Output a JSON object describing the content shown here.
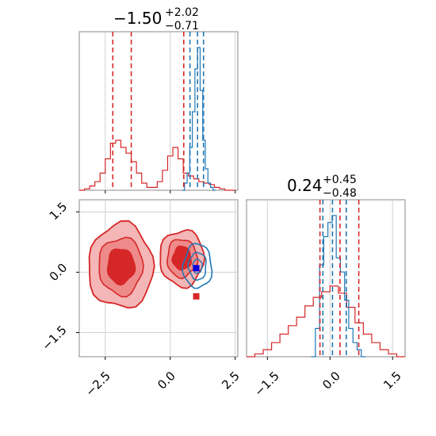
{
  "colors": {
    "red": "#d62728",
    "blue": "#1f77b4",
    "grid": "#d0d0d0",
    "axis": "#888888"
  },
  "chart_data": [
    {
      "type": "area",
      "panel": "top-left",
      "title": {
        "value": "−1.50",
        "plus": "+2.02",
        "minus": "−0.71"
      },
      "xlim": [
        -3.5,
        2.6
      ],
      "series": [
        {
          "color": "#d62728",
          "x": [
            -3.4,
            -3.2,
            -3.0,
            -2.8,
            -2.6,
            -2.4,
            -2.2,
            -2.0,
            -1.8,
            -1.6,
            -1.4,
            -1.2,
            -1.0,
            -0.8,
            -0.6,
            -0.4,
            -0.2,
            0.0,
            0.2,
            0.4,
            0.6,
            0.8,
            1.0,
            1.2,
            1.4,
            1.6,
            1.8,
            2.0,
            2.2,
            2.4
          ],
          "values": [
            0.0,
            0.01,
            0.03,
            0.06,
            0.12,
            0.22,
            0.33,
            0.35,
            0.3,
            0.26,
            0.2,
            0.12,
            0.05,
            0.02,
            0.02,
            0.06,
            0.14,
            0.24,
            0.3,
            0.22,
            0.12,
            0.1,
            0.08,
            0.06,
            0.05,
            0.04,
            0.02,
            0.01,
            0.0,
            0.0
          ]
        },
        {
          "color": "#1f77b4",
          "x": [
            0.5,
            0.6,
            0.7,
            0.8,
            0.9,
            1.0,
            1.1,
            1.2,
            1.3,
            1.4,
            1.5,
            1.6,
            1.7
          ],
          "values": [
            0.0,
            0.05,
            0.12,
            0.3,
            0.55,
            0.85,
            1.0,
            0.7,
            0.35,
            0.15,
            0.05,
            0.02,
            0.0
          ]
        }
      ],
      "quantile_lines": [
        {
          "color": "#d62728",
          "values": [
            -2.21,
            -1.5,
            0.52
          ]
        },
        {
          "color": "#1f77b4",
          "values": [
            0.76,
            1.05,
            1.28
          ]
        }
      ],
      "xticks": [
        -2.5,
        0.0,
        2.5
      ]
    },
    {
      "type": "area",
      "panel": "bottom-right",
      "title": {
        "value": "0.24",
        "plus": "+0.45",
        "minus": "−0.48"
      },
      "xlim": [
        -2.0,
        1.8
      ],
      "series": [
        {
          "color": "#d62728",
          "x": [
            -1.9,
            -1.7,
            -1.5,
            -1.3,
            -1.1,
            -0.9,
            -0.7,
            -0.5,
            -0.3,
            -0.1,
            0.1,
            0.3,
            0.5,
            0.7,
            0.9,
            1.1,
            1.3,
            1.5,
            1.7
          ],
          "values": [
            0.0,
            0.02,
            0.05,
            0.1,
            0.16,
            0.22,
            0.28,
            0.36,
            0.42,
            0.46,
            0.5,
            0.45,
            0.35,
            0.24,
            0.16,
            0.1,
            0.05,
            0.02,
            0.0
          ]
        },
        {
          "color": "#1f77b4",
          "x": [
            -0.4,
            -0.3,
            -0.2,
            -0.1,
            0.0,
            0.1,
            0.2,
            0.3,
            0.4,
            0.5,
            0.6,
            0.7,
            0.8
          ],
          "values": [
            0.0,
            0.2,
            0.65,
            0.85,
            0.95,
            1.0,
            0.7,
            0.6,
            0.4,
            0.2,
            0.1,
            0.05,
            0.0
          ]
        }
      ],
      "quantile_lines": [
        {
          "color": "#d62728",
          "values": [
            -0.24,
            0.24,
            0.69
          ]
        },
        {
          "color": "#1f77b4",
          "values": [
            -0.17,
            0.06,
            0.39
          ]
        }
      ],
      "xticks": [
        -1.5,
        0.0,
        1.5
      ]
    },
    {
      "type": "scatter",
      "panel": "bottom-left",
      "xlim": [
        -3.5,
        2.6
      ],
      "ylim": [
        -2.1,
        1.8
      ],
      "xticks": [
        -2.5,
        0.0,
        2.5
      ],
      "yticks": [
        1.5,
        0.0,
        -1.5
      ],
      "red_markers": [
        {
          "x": -2.0,
          "y": 0.15
        },
        {
          "x": 0.35,
          "y": 0.45
        },
        {
          "x": 1.0,
          "y": -0.6
        }
      ],
      "blue_markers": [
        {
          "x": 1.0,
          "y": 0.1
        }
      ],
      "red_modes": [
        {
          "cx": -1.9,
          "cy": 0.15,
          "rx": 1.25,
          "ry": 1.05
        },
        {
          "cx": 0.45,
          "cy": 0.35,
          "rx": 0.85,
          "ry": 0.7
        }
      ],
      "blue_mode": {
        "cx": 1.05,
        "cy": 0.15,
        "rx": 0.55,
        "ry": 0.55
      }
    }
  ],
  "tick_labels": {
    "x_left": [
      "−2.5",
      "0.0",
      "2.5"
    ],
    "y_left": [
      "1.5",
      "0.0",
      "−1.5"
    ],
    "x_right": [
      "−1.5",
      "0.0",
      "1.5"
    ]
  }
}
